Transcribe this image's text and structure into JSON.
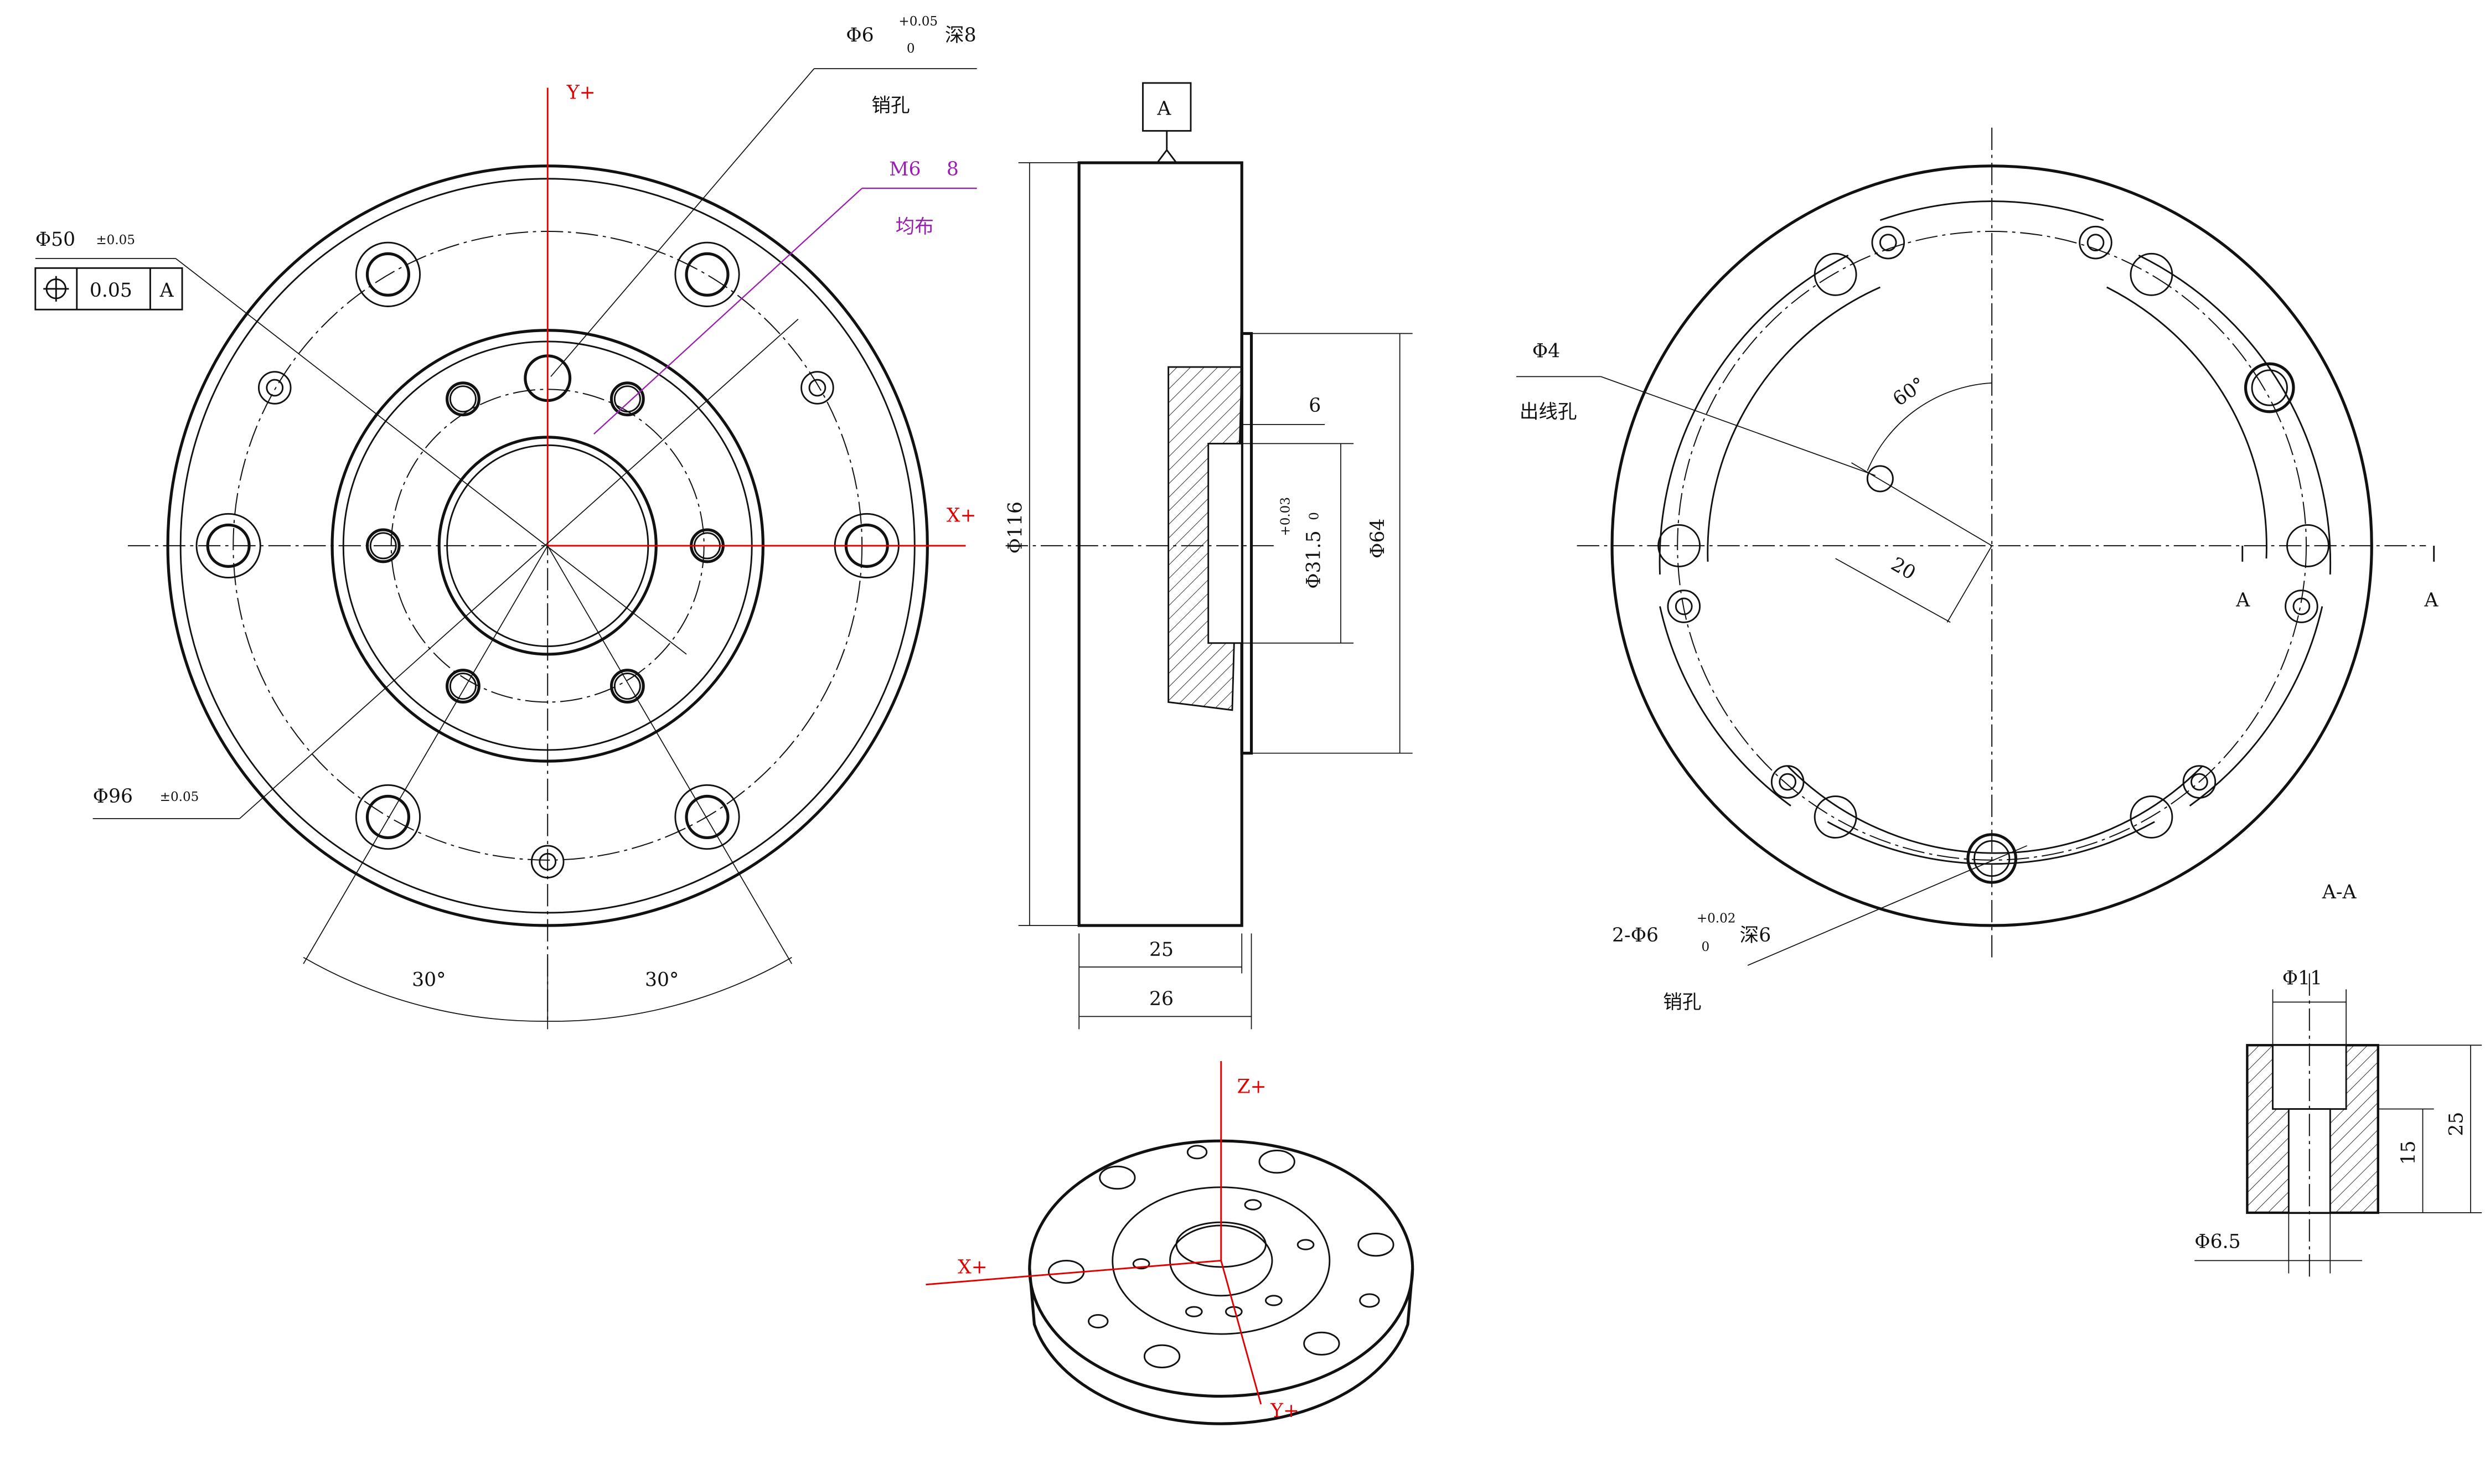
{
  "front_view": {
    "axis_y": "Y+",
    "axis_x": "X+",
    "pin_hole": {
      "diameter": "Φ6",
      "upper_tol": "+0.05",
      "lower_tol": "0",
      "depth": "深8",
      "note": "销孔"
    },
    "thread": {
      "size": "M6",
      "depth": "8",
      "note": "均布"
    },
    "bore": {
      "diameter": "Φ50",
      "tol": "±0.05",
      "position_tol": "0.05",
      "datum": "A"
    },
    "bolt_circle": {
      "diameter": "Φ96",
      "tol": "±0.05"
    },
    "angles": [
      "30°",
      "30°"
    ]
  },
  "side_view": {
    "datum": "A",
    "outer_diameter": "Φ116",
    "recess_depth": "6",
    "inner_diameter": "Φ31.5",
    "inner_upper_tol": "+0.03",
    "inner_lower_tol": "0",
    "boss_diameter": "Φ64",
    "width": "25",
    "total_width": "26"
  },
  "iso_view": {
    "axis_z": "Z+",
    "axis_x": "X+",
    "axis_y": "Y+"
  },
  "back_view": {
    "hole": {
      "diameter": "Φ4",
      "note": "出线孔"
    },
    "angle": "60°",
    "radius": "20",
    "section_marks": [
      "A",
      "A"
    ],
    "pin_hole": {
      "count_diameter": "2-Φ6",
      "upper_tol": "+0.02",
      "lower_tol": "0",
      "depth": "深6",
      "note": "销孔"
    }
  },
  "section": {
    "title": "A-A",
    "counterbore": "Φ11",
    "depth": "25",
    "thread_depth": "15",
    "hole": "Φ6.5"
  }
}
